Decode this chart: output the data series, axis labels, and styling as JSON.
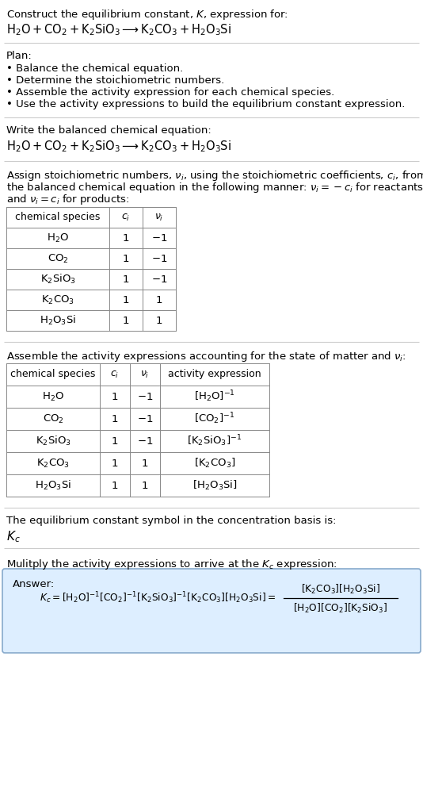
{
  "title_line1": "Construct the equilibrium constant, $K$, expression for:",
  "title_line2": "$\\mathrm{H_2O + CO_2 + K_2SiO_3 \\longrightarrow K_2CO_3 + H_2O_3Si}$",
  "plan_header": "Plan:",
  "plan_items": [
    "• Balance the chemical equation.",
    "• Determine the stoichiometric numbers.",
    "• Assemble the activity expression for each chemical species.",
    "• Use the activity expressions to build the equilibrium constant expression."
  ],
  "balanced_header": "Write the balanced chemical equation:",
  "balanced_eq": "$\\mathrm{H_2O + CO_2 + K_2SiO_3 \\longrightarrow K_2CO_3 + H_2O_3Si}$",
  "stoich_intro1": "Assign stoichiometric numbers, $\\nu_i$, using the stoichiometric coefficients, $c_i$, from",
  "stoich_intro2": "the balanced chemical equation in the following manner: $\\nu_i = -c_i$ for reactants",
  "stoich_intro3": "and $\\nu_i = c_i$ for products:",
  "table1_headers": [
    "chemical species",
    "$c_i$",
    "$\\nu_i$"
  ],
  "table1_rows": [
    [
      "$\\mathrm{H_2O}$",
      "1",
      "$-1$"
    ],
    [
      "$\\mathrm{CO_2}$",
      "1",
      "$-1$"
    ],
    [
      "$\\mathrm{K_2SiO_3}$",
      "1",
      "$-1$"
    ],
    [
      "$\\mathrm{K_2CO_3}$",
      "1",
      "$1$"
    ],
    [
      "$\\mathrm{H_2O_3Si}$",
      "1",
      "$1$"
    ]
  ],
  "activity_intro": "Assemble the activity expressions accounting for the state of matter and $\\nu_i$:",
  "table2_headers": [
    "chemical species",
    "$c_i$",
    "$\\nu_i$",
    "activity expression"
  ],
  "table2_rows": [
    [
      "$\\mathrm{H_2O}$",
      "1",
      "$-1$",
      "$[\\mathrm{H_2O}]^{-1}$"
    ],
    [
      "$\\mathrm{CO_2}$",
      "1",
      "$-1$",
      "$[\\mathrm{CO_2}]^{-1}$"
    ],
    [
      "$\\mathrm{K_2SiO_3}$",
      "1",
      "$-1$",
      "$[\\mathrm{K_2SiO_3}]^{-1}$"
    ],
    [
      "$\\mathrm{K_2CO_3}$",
      "1",
      "$1$",
      "$[\\mathrm{K_2CO_3}]$"
    ],
    [
      "$\\mathrm{H_2O_3Si}$",
      "1",
      "$1$",
      "$[\\mathrm{H_2O_3Si}]$"
    ]
  ],
  "kc_symbol_text": "The equilibrium constant symbol in the concentration basis is:",
  "kc_symbol": "$K_c$",
  "multiply_text": "Mulitply the activity expressions to arrive at the $K_c$ expression:",
  "answer_label": "Answer:",
  "answer_eq_kc": "$K_c = [\\mathrm{H_2O}]^{-1}[\\mathrm{CO_2}]^{-1}[\\mathrm{K_2SiO_3}]^{-1}[\\mathrm{K_2CO_3}][\\mathrm{H_2O_3Si}] = $",
  "answer_eq_right_num": "$[\\mathrm{K_2CO_3}][\\mathrm{H_2O_3Si}]$",
  "answer_eq_right_den": "$[\\mathrm{H_2O}][\\mathrm{CO_2}][\\mathrm{K_2SiO_3}]$",
  "bg_color": "#ffffff",
  "table_border_color": "#888888",
  "answer_box_color": "#ddeeff",
  "answer_box_edge": "#88aacc",
  "text_color": "#000000",
  "separator_color": "#cccccc"
}
